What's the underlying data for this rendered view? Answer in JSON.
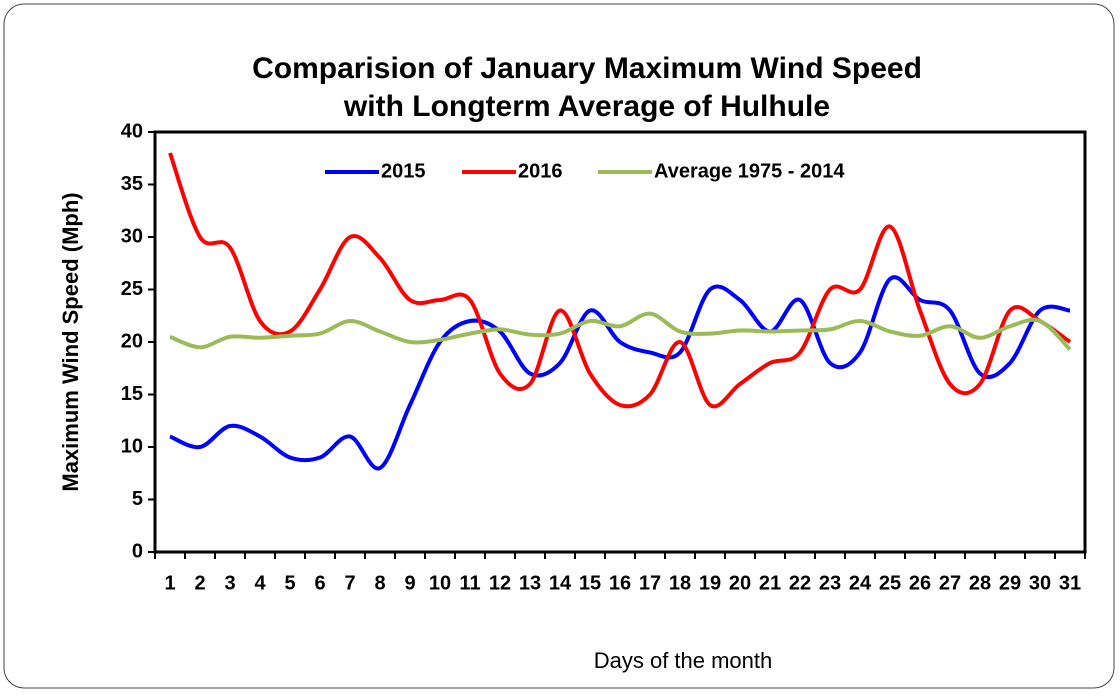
{
  "chart_data": {
    "type": "line",
    "title": [
      "Comparision of January Maximum Wind Speed",
      "with Longterm Average of Hulhule"
    ],
    "x_label": "Days of the month",
    "y_label": "Maximum Wind Speed (Mph)",
    "categories": [
      1,
      2,
      3,
      4,
      5,
      6,
      7,
      8,
      9,
      10,
      11,
      12,
      13,
      14,
      15,
      16,
      17,
      18,
      19,
      20,
      21,
      22,
      23,
      24,
      25,
      26,
      27,
      28,
      29,
      30,
      31
    ],
    "series": [
      {
        "name": "2015",
        "color": "#0000ff",
        "values": [
          11,
          10,
          12,
          11,
          9,
          9,
          11,
          8,
          14,
          20,
          22,
          21,
          17,
          18,
          23,
          20,
          19,
          19,
          25,
          24,
          21,
          24,
          18,
          19,
          26,
          24,
          23,
          17,
          18,
          23,
          23
        ]
      },
      {
        "name": "2016",
        "color": "#ff0000",
        "values": [
          38,
          30,
          29,
          22,
          21,
          25,
          30,
          28,
          24,
          24,
          24,
          17,
          16,
          23,
          17,
          14,
          15,
          20,
          14,
          16,
          18,
          19,
          25,
          25,
          31,
          23,
          16,
          16,
          23,
          22,
          20
        ]
      },
      {
        "name": "Average 1975 - 2014",
        "color": "#9bbb59",
        "values": [
          20.5,
          19.5,
          20.5,
          20.4,
          20.6,
          20.8,
          22,
          21,
          20,
          20.2,
          20.8,
          21.2,
          20.7,
          20.8,
          22,
          21.5,
          22.7,
          21,
          20.8,
          21.1,
          21,
          21.1,
          21.2,
          22,
          21,
          20.6,
          21.5,
          20.4,
          21.5,
          22,
          19.3
        ]
      }
    ],
    "ylim": [
      0,
      40
    ],
    "yticks": [
      0,
      5,
      10,
      15,
      20,
      25,
      30,
      35,
      40
    ],
    "legend": "top",
    "smooth": true
  }
}
